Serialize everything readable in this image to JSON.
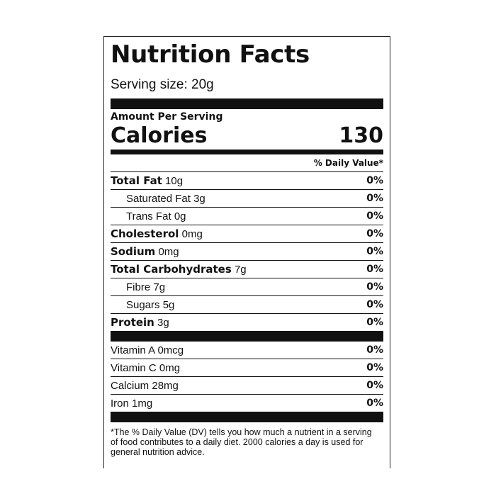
{
  "label": {
    "title": "Nutrition Facts",
    "serving_size": "Serving size: 20g",
    "amount_per_serving": "Amount Per Serving",
    "calories_label": "Calories",
    "calories_value": "130",
    "daily_value_header": "% Daily Value*",
    "nutrients": [
      {
        "name": "Total Fat",
        "amount": "10g",
        "dv": "0%"
      },
      {
        "name": "Saturated Fat",
        "amount": "3g",
        "dv": "0%"
      },
      {
        "name": "Trans Fat",
        "amount": "0g",
        "dv": "0%"
      },
      {
        "name": "Cholesterol",
        "amount": "0mg",
        "dv": "0%"
      },
      {
        "name": "Sodium",
        "amount": "0mg",
        "dv": "0%"
      },
      {
        "name": "Total Carbohydrates",
        "amount": "7g",
        "dv": "0%"
      },
      {
        "name": "Fibre",
        "amount": "7g",
        "dv": "0%"
      },
      {
        "name": "Sugars",
        "amount": "5g",
        "dv": "0%"
      },
      {
        "name": "Protein",
        "amount": "3g",
        "dv": "0%"
      }
    ],
    "vitamins": [
      {
        "name": "Vitamin A",
        "amount": "0mcg",
        "dv": "0%"
      },
      {
        "name": "Vitamin C",
        "amount": "0mg",
        "dv": "0%"
      },
      {
        "name": "Calcium",
        "amount": "28mg",
        "dv": "0%"
      },
      {
        "name": "Iron",
        "amount": "1mg",
        "dv": "0%"
      }
    ],
    "footnote": "*The % Daily Value (DV) tells you how much a nutrient in a serving of food contributes to a daily diet. 2000 calories a day is used for general nutrition advice."
  }
}
